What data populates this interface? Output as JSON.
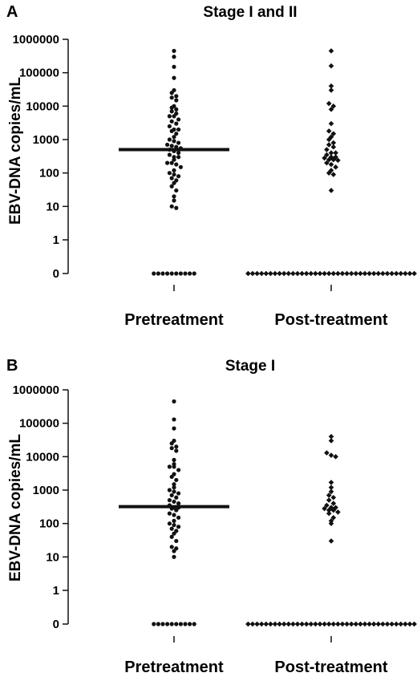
{
  "chart_data": [
    {
      "type": "scatter",
      "panel_label": "A",
      "title": "Stage I and II",
      "ylabel": "EBV-DNA copies/mL",
      "yscale": "log",
      "yticks": [
        "0",
        "1",
        "10",
        "100",
        "1000",
        "10000",
        "100000",
        "1000000"
      ],
      "categories": [
        "Pretreatment",
        "Post-treatment"
      ],
      "groups": [
        {
          "name": "Pretreatment",
          "marker": "circle",
          "median": 500,
          "zero_count": 10,
          "values": [
            450000,
            300000,
            150000,
            70000,
            30000,
            25000,
            20000,
            18000,
            15000,
            10000,
            9000,
            8000,
            7000,
            6000,
            5000,
            5000,
            4000,
            3500,
            3000,
            2500,
            2000,
            2000,
            1800,
            1500,
            1200,
            1000,
            900,
            800,
            700,
            650,
            600,
            550,
            500,
            450,
            400,
            350,
            300,
            300,
            250,
            200,
            200,
            180,
            150,
            120,
            100,
            90,
            80,
            70,
            60,
            50,
            40,
            30,
            20,
            15,
            10,
            9
          ]
        },
        {
          "name": "Post-treatment",
          "marker": "diamond",
          "zero_count": 38,
          "values": [
            450000,
            160000,
            40000,
            30000,
            12000,
            10000,
            8000,
            3000,
            1800,
            1500,
            1200,
            1000,
            800,
            700,
            600,
            500,
            400,
            400,
            350,
            300,
            300,
            280,
            250,
            250,
            240,
            200,
            180,
            150,
            120,
            100,
            90,
            30
          ]
        }
      ]
    },
    {
      "type": "scatter",
      "panel_label": "B",
      "title": "Stage I",
      "ylabel": "EBV-DNA copies/mL",
      "yscale": "log",
      "yticks": [
        "0",
        "1",
        "10",
        "100",
        "1000",
        "10000",
        "100000",
        "1000000"
      ],
      "categories": [
        "Pretreatment",
        "Post-treatment"
      ],
      "groups": [
        {
          "name": "Pretreatment",
          "marker": "circle",
          "median": 320,
          "zero_count": 10,
          "values": [
            450000,
            130000,
            70000,
            30000,
            25000,
            20000,
            18000,
            15000,
            8000,
            6000,
            5000,
            5000,
            4000,
            3000,
            2500,
            2000,
            1500,
            1200,
            1000,
            900,
            800,
            700,
            600,
            500,
            450,
            400,
            350,
            300,
            300,
            280,
            250,
            200,
            180,
            150,
            120,
            100,
            90,
            80,
            70,
            60,
            50,
            40,
            30,
            20,
            18,
            15,
            10
          ]
        },
        {
          "name": "Post-treatment",
          "marker": "diamond",
          "zero_count": 38,
          "values": [
            40000,
            30000,
            13000,
            11000,
            10000,
            1700,
            1200,
            900,
            700,
            600,
            500,
            400,
            350,
            300,
            300,
            280,
            250,
            250,
            220,
            200,
            150,
            120,
            100,
            30
          ]
        }
      ]
    }
  ]
}
